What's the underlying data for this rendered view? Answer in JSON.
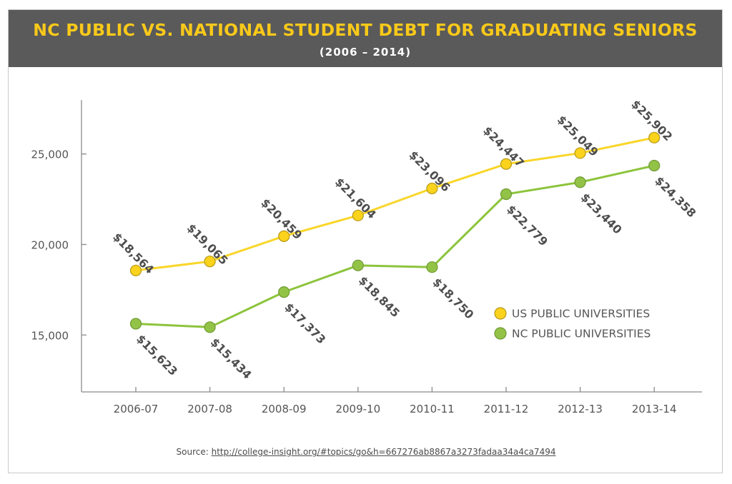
{
  "header": {
    "title": "NC PUBLIC VS. NATIONAL STUDENT DEBT FOR GRADUATING SENIORS",
    "subtitle": "(2006 – 2014)"
  },
  "source": {
    "label": "Source:",
    "url": "http://college-insight.org/#topics/go&h=667276ab8867a3273fadaa34a4ca7494"
  },
  "colors": {
    "header_bg": "#5a5a5a",
    "title": "#f9c91a",
    "us_line": "#f9d629",
    "us_marker": "#fbd21c",
    "nc_line": "#8cc43c",
    "nc_marker": "#93c346",
    "label_text": "#4d4d4d"
  },
  "chart_data": {
    "type": "line",
    "categories": [
      "2006-07",
      "2007-08",
      "2008-09",
      "2009-10",
      "2010-11",
      "2011-12",
      "2012-13",
      "2013-14"
    ],
    "ylim": [
      12000,
      28000
    ],
    "yticks": [
      15000,
      20000,
      25000
    ],
    "ytick_labels": [
      "15,000",
      "20,000",
      "25,000"
    ],
    "grid": false,
    "legend_position": "right",
    "series": [
      {
        "name": "US PUBLIC UNIVERSITIES",
        "values": [
          18564,
          19065,
          20459,
          21604,
          23096,
          24447,
          25049,
          25902
        ],
        "labels": [
          "$18,564",
          "$19,065",
          "$20,459",
          "$21,604",
          "$23,096",
          "$24,447",
          "$25,049",
          "$25,902"
        ]
      },
      {
        "name": "NC PUBLIC UNIVERSITIES",
        "values": [
          15623,
          15434,
          17373,
          18845,
          18750,
          22779,
          23440,
          24358
        ],
        "labels": [
          "$15,623",
          "$15,434",
          "$17,373",
          "$18,845",
          "$18,750",
          "$22,779",
          "$23,440",
          "$24,358"
        ]
      }
    ]
  }
}
